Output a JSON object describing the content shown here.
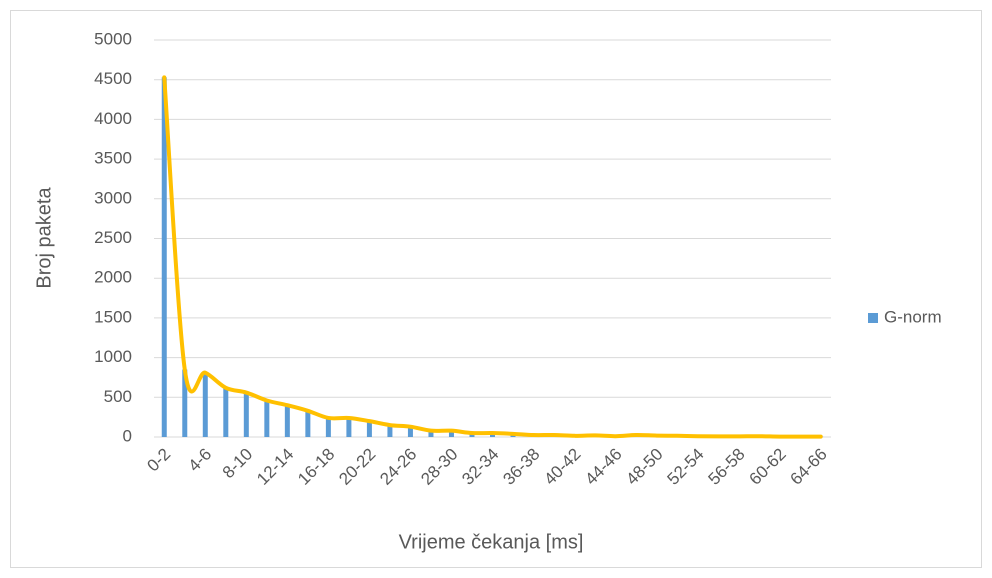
{
  "chart_data": {
    "type": "bar",
    "categories": [
      "0-2",
      null,
      "4-6",
      null,
      "8-10",
      null,
      "12-14",
      null,
      "16-18",
      null,
      "20-22",
      null,
      "24-26",
      null,
      "28-30",
      null,
      "32-34",
      null,
      "36-38",
      null,
      "40-42",
      null,
      "44-46",
      null,
      "48-50",
      null,
      "52-54",
      null,
      "56-58",
      null,
      "60-62",
      null,
      "64-66"
    ],
    "series": [
      {
        "name": "G-norm",
        "color": "#5b9bd5",
        "values": [
          4530,
          850,
          810,
          620,
          560,
          460,
          400,
          330,
          240,
          240,
          200,
          150,
          130,
          80,
          80,
          50,
          50,
          40,
          25,
          25,
          15,
          20,
          10,
          25,
          18,
          15,
          10,
          8,
          8,
          10,
          5,
          5,
          5
        ]
      }
    ],
    "smooth_line_color": "#ffc000",
    "xlabel": "Vrijeme čekanja [ms]",
    "ylabel": "Broj paketa",
    "ylim": [
      0,
      5000
    ],
    "yticks": [
      0,
      500,
      1000,
      1500,
      2000,
      2500,
      3000,
      3500,
      4000,
      4500,
      5000
    ],
    "grid": true,
    "legend": "right"
  }
}
